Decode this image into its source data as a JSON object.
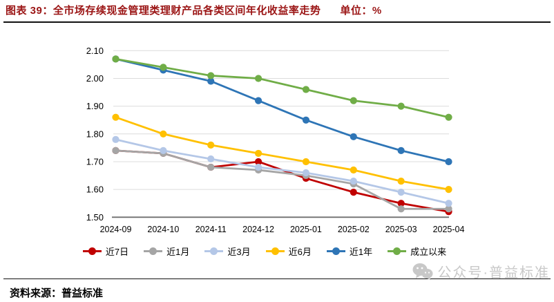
{
  "header": {
    "title": "图表 39：全市场存续现金管理类理财产品各类区间年化收益率走势",
    "unit_label": "单位：%"
  },
  "chart_data": {
    "type": "line",
    "title": "全市场存续现金管理类理财产品各类区间年化收益率走势",
    "unit": "%",
    "categories": [
      "2024-09",
      "2024-10",
      "2024-11",
      "2024-12",
      "2025-01",
      "2025-02",
      "2025-03",
      "2025-04"
    ],
    "series": [
      {
        "name": "近7日",
        "color": "#c00000",
        "values": [
          1.74,
          1.73,
          1.68,
          1.7,
          1.64,
          1.59,
          1.55,
          1.52
        ]
      },
      {
        "name": "近1月",
        "color": "#a5a5a5",
        "values": [
          1.74,
          1.73,
          1.68,
          1.67,
          1.65,
          1.62,
          1.53,
          1.53
        ]
      },
      {
        "name": "近3月",
        "color": "#b4c7e7",
        "values": [
          1.78,
          1.74,
          1.71,
          1.68,
          1.66,
          1.63,
          1.59,
          1.55
        ]
      },
      {
        "name": "近6月",
        "color": "#ffc000",
        "values": [
          1.86,
          1.8,
          1.76,
          1.73,
          1.7,
          1.67,
          1.63,
          1.6
        ]
      },
      {
        "name": "近1年",
        "color": "#2e75b6",
        "values": [
          2.07,
          2.03,
          1.99,
          1.92,
          1.85,
          1.79,
          1.74,
          1.7
        ]
      },
      {
        "name": "成立以来",
        "color": "#70ad47",
        "values": [
          2.07,
          2.04,
          2.01,
          2.0,
          1.96,
          1.92,
          1.9,
          1.86
        ]
      }
    ],
    "ylim": [
      1.5,
      2.1
    ],
    "ytick_step": 0.1,
    "ytick_labels": [
      "1.50",
      "1.60",
      "1.70",
      "1.80",
      "1.90",
      "2.00",
      "2.10"
    ],
    "grid": true,
    "legend_position": "bottom"
  },
  "footer": {
    "source_label": "资料来源：普益标准"
  },
  "watermark": {
    "icon": "wechat-icon",
    "text": "公众号·普益标准"
  }
}
